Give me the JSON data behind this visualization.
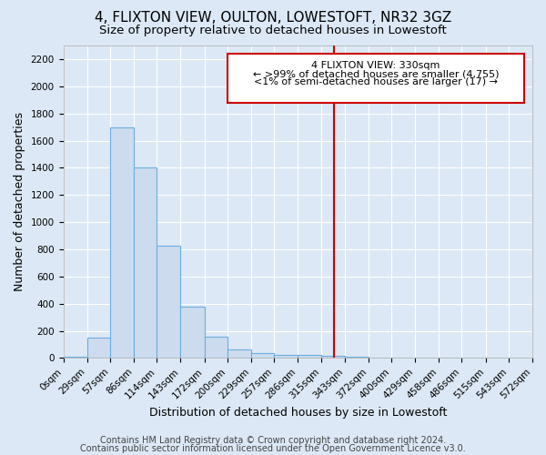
{
  "title": "4, FLIXTON VIEW, OULTON, LOWESTOFT, NR32 3GZ",
  "subtitle": "Size of property relative to detached houses in Lowestoft",
  "xlabel": "Distribution of detached houses by size in Lowestoft",
  "ylabel": "Number of detached properties",
  "footnote1": "Contains HM Land Registry data © Crown copyright and database right 2024.",
  "footnote2": "Contains public sector information licensed under the Open Government Licence v3.0.",
  "bin_edges": [
    0,
    29,
    57,
    86,
    114,
    143,
    172,
    200,
    229,
    257,
    286,
    315,
    343,
    372,
    400,
    429,
    458,
    486,
    515,
    543,
    572
  ],
  "bar_heights": [
    10,
    150,
    1700,
    1400,
    830,
    380,
    160,
    65,
    35,
    25,
    25,
    15,
    10,
    5,
    0,
    0,
    0,
    0,
    0,
    0
  ],
  "bar_color": "#ccdcee",
  "bar_edge_color": "#6aaee0",
  "red_line_x": 330,
  "ylim": [
    0,
    2300
  ],
  "yticks": [
    0,
    200,
    400,
    600,
    800,
    1000,
    1200,
    1400,
    1600,
    1800,
    2000,
    2200
  ],
  "annotation_title": "4 FLIXTON VIEW: 330sqm",
  "annotation_line1": "← >99% of detached houses are smaller (4,755)",
  "annotation_line2": "<1% of semi-detached houses are larger (17) →",
  "annotation_box_facecolor": "#ffffff",
  "annotation_border_color": "#cc0000",
  "background_color": "#dce8f5",
  "grid_color": "#ffffff",
  "title_fontsize": 11,
  "subtitle_fontsize": 9.5,
  "axis_label_fontsize": 9,
  "tick_fontsize": 7.5,
  "annotation_fontsize": 8,
  "footnote_fontsize": 7
}
